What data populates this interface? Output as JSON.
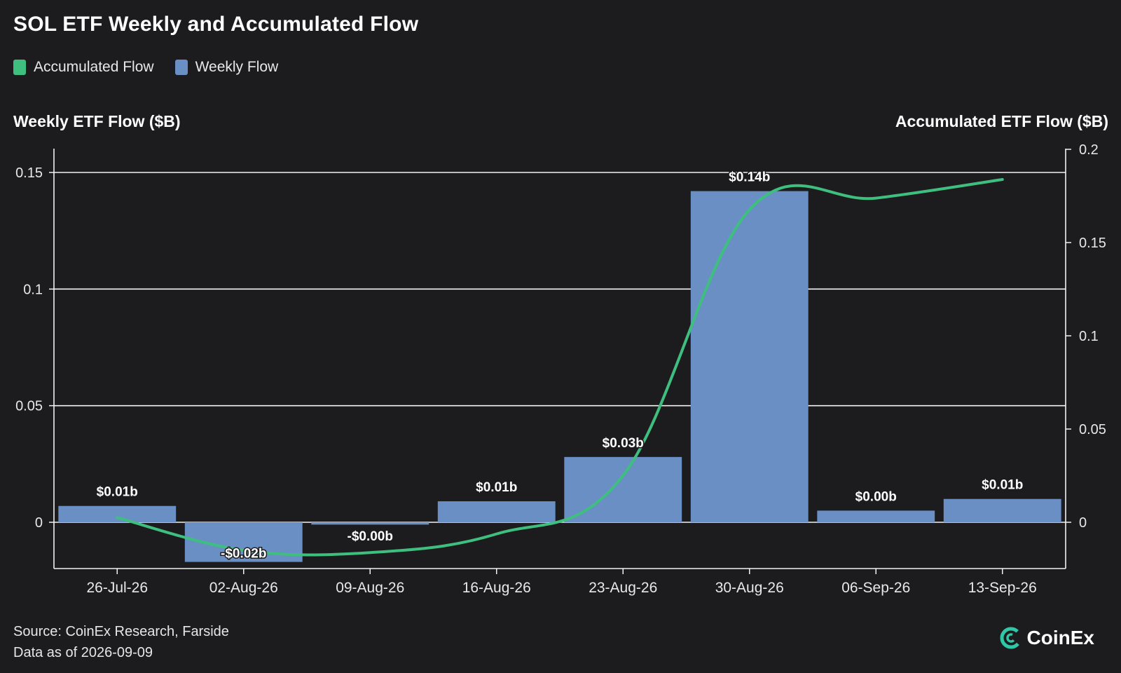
{
  "chart_data": {
    "type": "bar",
    "title": "SOL ETF Weekly and Accumulated Flow",
    "ylabel": "Weekly ETF Flow ($B)",
    "y2label": "Accumulated ETF Flow ($B)",
    "categories": [
      "26-Jul-26",
      "02-Aug-26",
      "09-Aug-26",
      "16-Aug-26",
      "23-Aug-26",
      "30-Aug-26",
      "06-Sep-26",
      "13-Sep-26"
    ],
    "ylim": [
      -0.02,
      0.16
    ],
    "yticks": [
      0,
      0.05,
      0.1,
      0.15
    ],
    "ytick_labels": [
      "0",
      "0.05",
      "0.1",
      "0.15"
    ],
    "y2lim": [
      -0.04,
      0.2
    ],
    "y2ticks": [
      0,
      0.05,
      0.1,
      0.15,
      0.2
    ],
    "y2tick_labels": [
      "0",
      "0.05",
      "0.1",
      "0.15",
      "0.2"
    ],
    "grid": true,
    "legend_position": "top-left",
    "series": [
      {
        "name": "Weekly Flow",
        "type": "bar",
        "axis": "left",
        "color": "#6a8fc4",
        "values": [
          0.007,
          -0.017,
          -0.001,
          0.009,
          0.028,
          0.142,
          0.005,
          0.01
        ],
        "labels": [
          "$0.01b",
          "-$0.02b",
          "-$0.00b",
          "$0.01b",
          "$0.03b",
          "$0.14b",
          "$0.00b",
          "$0.01b"
        ]
      },
      {
        "name": "Accumulated Flow",
        "type": "line",
        "axis": "left",
        "color": "#3fbf7f",
        "values": [
          0.002,
          -0.012,
          -0.013,
          -0.005,
          0.02,
          0.134,
          0.139,
          0.147
        ]
      }
    ]
  },
  "legend": {
    "items": [
      {
        "label": "Accumulated Flow",
        "color": "#3fbf7f"
      },
      {
        "label": "Weekly Flow",
        "color": "#6a8fc4"
      }
    ]
  },
  "footer": {
    "source": "Source: CoinEx Research, Farside",
    "date": "Data as of 2026-09-09"
  },
  "brand": {
    "name": "CoinEx",
    "icon": "coinex-logo-icon"
  }
}
